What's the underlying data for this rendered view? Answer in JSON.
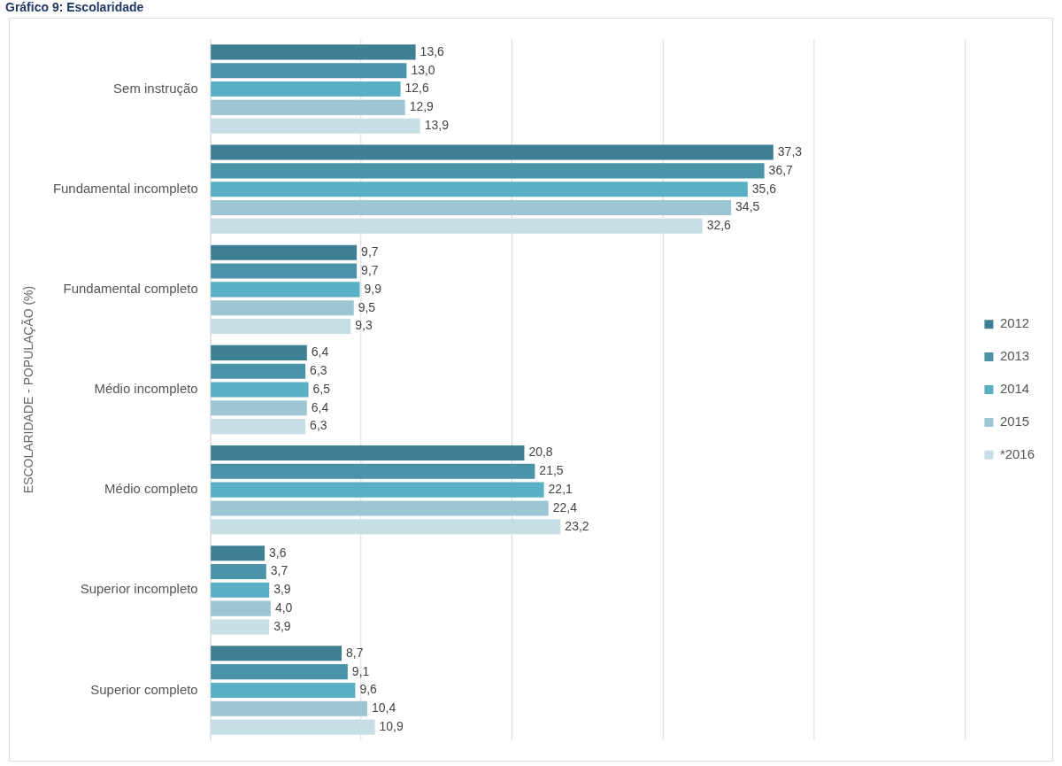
{
  "chart_data": {
    "type": "bar",
    "orientation": "horizontal",
    "title": "Gráfico 9: Escolaridade",
    "ylabel": "ESCOLARIDADE - POPULAÇÃO (%)",
    "categories": [
      "Sem instrução",
      "Fundamental incompleto",
      "Fundamental completo",
      "Médio incompleto",
      "Médio completo",
      "Superior incompleto",
      "Superior completo"
    ],
    "series": [
      {
        "name": "2012",
        "color": "#3f7f93",
        "values": [
          13.6,
          37.3,
          9.7,
          6.4,
          20.8,
          3.6,
          8.7
        ],
        "value_labels": [
          "13,6",
          "37,3",
          "9,7",
          "6,4",
          "20,8",
          "3,6",
          "8,7"
        ]
      },
      {
        "name": "2013",
        "color": "#4a93a8",
        "values": [
          13.0,
          36.7,
          9.7,
          6.3,
          21.5,
          3.7,
          9.1
        ],
        "value_labels": [
          "13,0",
          "36,7",
          "9,7",
          "6,3",
          "21,5",
          "3,7",
          "9,1"
        ]
      },
      {
        "name": "2014",
        "color": "#58b0c4",
        "values": [
          12.6,
          35.6,
          9.9,
          6.5,
          22.1,
          3.9,
          9.6
        ],
        "value_labels": [
          "12,6",
          "35,6",
          "9,9",
          "6,5",
          "22,1",
          "3,9",
          "9,6"
        ]
      },
      {
        "name": "2015",
        "color": "#9cc6d3",
        "values": [
          12.9,
          34.5,
          9.5,
          6.4,
          22.4,
          4.0,
          10.4
        ],
        "value_labels": [
          "12,9",
          "34,5",
          "9,5",
          "6,4",
          "22,4",
          "4,0",
          "10,4"
        ]
      },
      {
        "name": "*2016",
        "color": "#c8dee6",
        "values": [
          13.9,
          32.6,
          9.3,
          6.3,
          23.2,
          3.9,
          10.9
        ],
        "value_labels": [
          "13,9",
          "32,6",
          "9,3",
          "6,3",
          "23,2",
          "3,9",
          "10,9"
        ]
      }
    ],
    "xlim": [
      0,
      50
    ],
    "xticks": [
      {
        "value": 0,
        "label": null
      },
      {
        "value": 10,
        "label": null
      },
      {
        "value": 20,
        "label": null
      },
      {
        "value": 30,
        "label": null
      },
      {
        "value": 40,
        "label": null
      },
      {
        "value": 50,
        "label": null
      }
    ],
    "tick_labels": "y",
    "grid": "x",
    "legend": "right"
  }
}
